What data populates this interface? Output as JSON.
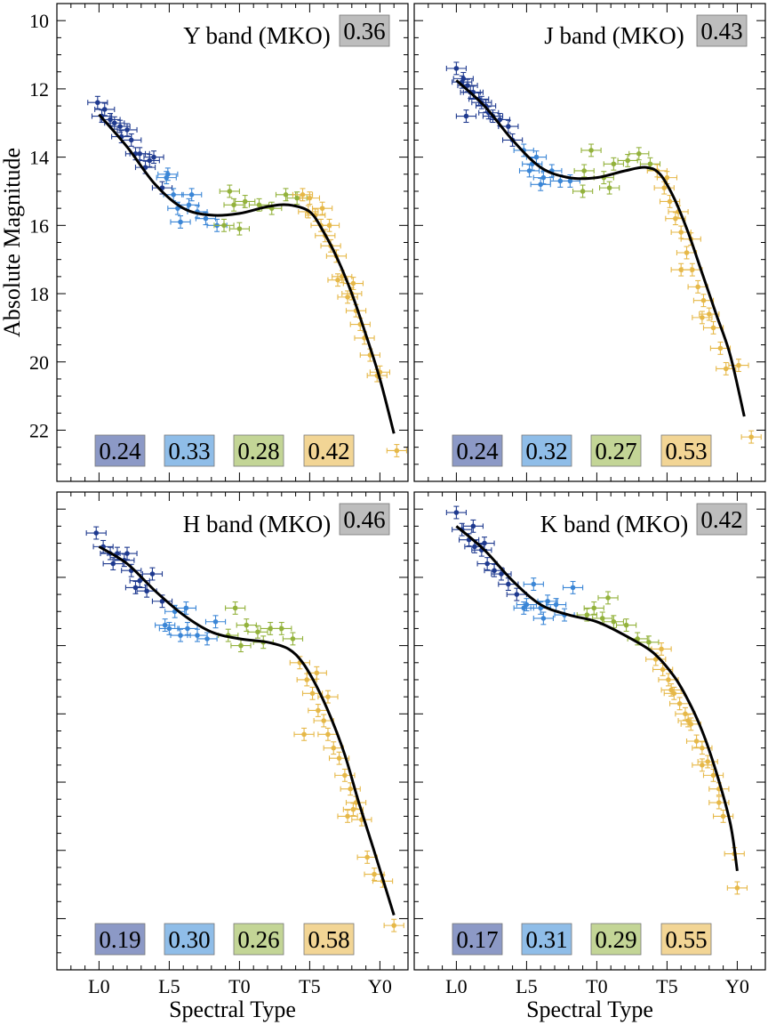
{
  "chart_data": [
    {
      "type": "scatter",
      "title": "Y band (MKO)",
      "xlabel": "",
      "ylabel": "Absolute Magnitude",
      "x_ticks": [
        "L0",
        "L5",
        "T0",
        "T5",
        "Y0"
      ],
      "x_tick_values": [
        0,
        5,
        10,
        15,
        20
      ],
      "xlim": [
        -3,
        22
      ],
      "ylim": [
        23.5,
        9.5
      ],
      "y_inverted": true,
      "y_ticks": [
        "10",
        "12",
        "14",
        "16",
        "18",
        "20",
        "22"
      ],
      "y_tick_values": [
        10,
        12,
        14,
        16,
        18,
        20,
        22
      ],
      "total_scatter": "0.36",
      "group_scatter": [
        "0.24",
        "0.33",
        "0.28",
        "0.42"
      ],
      "fit_curve": [
        [
          0,
          12.75
        ],
        [
          2,
          13.7
        ],
        [
          4,
          14.8
        ],
        [
          6,
          15.5
        ],
        [
          8,
          15.7
        ],
        [
          10,
          15.65
        ],
        [
          12,
          15.45
        ],
        [
          13.5,
          15.4
        ],
        [
          15,
          15.6
        ],
        [
          16,
          16.2
        ],
        [
          17,
          17.0
        ],
        [
          18,
          18.0
        ],
        [
          19,
          19.2
        ],
        [
          20,
          20.5
        ],
        [
          21,
          22.1
        ]
      ],
      "points": [
        [
          -0.1,
          12.4,
          0
        ],
        [
          0.4,
          12.6,
          0
        ],
        [
          0.8,
          12.9,
          0
        ],
        [
          1.1,
          13.0,
          0
        ],
        [
          1.5,
          13.1,
          0
        ],
        [
          2.0,
          13.2,
          0
        ],
        [
          2.3,
          13.5,
          0
        ],
        [
          2.9,
          13.9,
          0
        ],
        [
          3.3,
          14.3,
          0
        ],
        [
          3.9,
          14.0,
          0
        ],
        [
          0.2,
          12.8,
          0
        ],
        [
          1.6,
          13.4,
          0
        ],
        [
          2.6,
          13.9,
          0
        ],
        [
          3.6,
          14.1,
          0
        ],
        [
          4.5,
          14.9,
          0
        ],
        [
          4.8,
          14.6,
          1
        ],
        [
          5.3,
          15.1,
          1
        ],
        [
          5.6,
          15.5,
          1
        ],
        [
          6.4,
          15.4,
          1
        ],
        [
          7.0,
          15.6,
          1
        ],
        [
          7.6,
          15.8,
          1
        ],
        [
          8.4,
          16.0,
          1
        ],
        [
          5.8,
          15.9,
          1
        ],
        [
          6.6,
          15.1,
          1
        ],
        [
          4.9,
          14.5,
          1
        ],
        [
          8.9,
          16.0,
          2
        ],
        [
          9.6,
          15.4,
          2
        ],
        [
          10.4,
          15.3,
          2
        ],
        [
          11.4,
          15.4,
          2
        ],
        [
          12.3,
          15.5,
          2
        ],
        [
          13.3,
          15.1,
          2
        ],
        [
          14.1,
          15.2,
          2
        ],
        [
          9.3,
          15.0,
          2
        ],
        [
          10.0,
          16.1,
          2
        ],
        [
          14.5,
          15.1,
          3
        ],
        [
          15.0,
          15.2,
          3
        ],
        [
          15.4,
          15.7,
          3
        ],
        [
          15.8,
          16.0,
          3
        ],
        [
          16.1,
          16.3,
          3
        ],
        [
          16.5,
          16.6,
          3
        ],
        [
          16.9,
          16.9,
          3
        ],
        [
          17.3,
          17.5,
          3
        ],
        [
          17.7,
          18.1,
          3
        ],
        [
          18.1,
          17.7,
          3
        ],
        [
          18.3,
          18.5,
          3
        ],
        [
          18.6,
          18.9,
          3
        ],
        [
          18.9,
          19.3,
          3
        ],
        [
          19.3,
          19.8,
          3
        ],
        [
          19.8,
          20.4,
          3
        ],
        [
          20.0,
          20.3,
          3
        ],
        [
          21.2,
          22.6,
          3
        ],
        [
          16.4,
          16.0,
          3
        ],
        [
          17.0,
          17.6,
          3
        ],
        [
          18.0,
          18.0,
          3
        ],
        [
          15.9,
          15.5,
          3
        ],
        [
          14.9,
          15.6,
          3
        ]
      ]
    },
    {
      "type": "scatter",
      "title": "J band (MKO)",
      "xlabel": "",
      "ylabel": "",
      "x_ticks": [
        "L0",
        "L5",
        "T0",
        "T5",
        "Y0"
      ],
      "x_tick_values": [
        0,
        5,
        10,
        15,
        20
      ],
      "xlim": [
        -3,
        22
      ],
      "ylim": [
        23.5,
        9.5
      ],
      "y_inverted": true,
      "total_scatter": "0.43",
      "group_scatter": [
        "0.24",
        "0.32",
        "0.27",
        "0.53"
      ],
      "fit_curve": [
        [
          0,
          11.75
        ],
        [
          2,
          12.5
        ],
        [
          4,
          13.5
        ],
        [
          6,
          14.3
        ],
        [
          8,
          14.6
        ],
        [
          10,
          14.6
        ],
        [
          12,
          14.4
        ],
        [
          13.5,
          14.3
        ],
        [
          14.5,
          14.5
        ],
        [
          15.5,
          15.2
        ],
        [
          16.5,
          16.2
        ],
        [
          17.5,
          17.4
        ],
        [
          18.5,
          18.6
        ],
        [
          19.5,
          19.8
        ],
        [
          20.5,
          21.6
        ]
      ],
      "points": [
        [
          0.0,
          11.4,
          0
        ],
        [
          0.4,
          11.8,
          0
        ],
        [
          0.8,
          11.9,
          0
        ],
        [
          1.2,
          12.1,
          0
        ],
        [
          1.6,
          12.3,
          0
        ],
        [
          2.1,
          12.5,
          0
        ],
        [
          2.6,
          12.8,
          0
        ],
        [
          3.1,
          12.9,
          0
        ],
        [
          3.7,
          13.1,
          0
        ],
        [
          0.5,
          11.7,
          0
        ],
        [
          1.0,
          12.1,
          0
        ],
        [
          1.8,
          12.4,
          0
        ],
        [
          2.3,
          12.7,
          0
        ],
        [
          4.0,
          13.5,
          0
        ],
        [
          0.7,
          12.8,
          0
        ],
        [
          4.8,
          13.8,
          1
        ],
        [
          5.2,
          14.4,
          1
        ],
        [
          5.7,
          14.0,
          1
        ],
        [
          6.2,
          14.6,
          1
        ],
        [
          6.8,
          14.4,
          1
        ],
        [
          7.4,
          14.7,
          1
        ],
        [
          8.1,
          14.7,
          1
        ],
        [
          6.0,
          14.8,
          1
        ],
        [
          5.4,
          14.2,
          1
        ],
        [
          9.1,
          14.4,
          2
        ],
        [
          9.6,
          13.8,
          2
        ],
        [
          10.5,
          14.6,
          2
        ],
        [
          11.2,
          14.2,
          2
        ],
        [
          12.2,
          14.1,
          2
        ],
        [
          13.0,
          13.9,
          2
        ],
        [
          13.8,
          14.2,
          2
        ],
        [
          9.0,
          15.0,
          2
        ],
        [
          10.9,
          14.9,
          2
        ],
        [
          14.3,
          14.4,
          3
        ],
        [
          14.8,
          14.9,
          3
        ],
        [
          15.2,
          15.3,
          3
        ],
        [
          15.6,
          15.8,
          3
        ],
        [
          16.0,
          16.2,
          3
        ],
        [
          16.4,
          16.8,
          3
        ],
        [
          16.8,
          17.3,
          3
        ],
        [
          17.2,
          17.8,
          3
        ],
        [
          17.6,
          18.2,
          3
        ],
        [
          18.0,
          18.6,
          3
        ],
        [
          18.3,
          19.0,
          3
        ],
        [
          18.8,
          19.6,
          3
        ],
        [
          19.2,
          20.2,
          3
        ],
        [
          20.1,
          20.1,
          3
        ],
        [
          21.0,
          22.2,
          3
        ],
        [
          15.8,
          15.6,
          3
        ],
        [
          16.7,
          16.4,
          3
        ],
        [
          17.5,
          18.7,
          3
        ],
        [
          16.0,
          17.3,
          3
        ],
        [
          15.0,
          14.6,
          3
        ]
      ]
    },
    {
      "type": "scatter",
      "title": "H band (MKO)",
      "xlabel": "Spectral Type",
      "ylabel": "Absolute Magnitude",
      "x_ticks": [
        "L0",
        "L5",
        "T0",
        "T5",
        "Y0"
      ],
      "x_tick_values": [
        0,
        5,
        10,
        15,
        20
      ],
      "xlim": [
        -3,
        22
      ],
      "ylim": [
        23.5,
        9.5
      ],
      "y_inverted": true,
      "total_scatter": "0.46",
      "group_scatter": [
        "0.19",
        "0.30",
        "0.26",
        "0.58"
      ],
      "fit_curve": [
        [
          0,
          11.1
        ],
        [
          2,
          11.6
        ],
        [
          4,
          12.4
        ],
        [
          6,
          13.1
        ],
        [
          8,
          13.6
        ],
        [
          10,
          13.8
        ],
        [
          12,
          13.9
        ],
        [
          13.5,
          14.1
        ],
        [
          14.5,
          14.5
        ],
        [
          15.5,
          15.2
        ],
        [
          16.5,
          16.1
        ],
        [
          17.5,
          17.2
        ],
        [
          18.5,
          18.6
        ],
        [
          19.5,
          19.9
        ],
        [
          21.0,
          21.9
        ]
      ],
      "points": [
        [
          -0.2,
          10.7,
          0
        ],
        [
          0.3,
          11.1,
          0
        ],
        [
          0.8,
          11.3,
          0
        ],
        [
          1.3,
          11.3,
          0
        ],
        [
          1.8,
          11.5,
          0
        ],
        [
          2.3,
          11.8,
          0
        ],
        [
          2.9,
          12.1,
          0
        ],
        [
          3.4,
          12.4,
          0
        ],
        [
          3.8,
          11.9,
          0
        ],
        [
          1.0,
          11.6,
          0
        ],
        [
          2.0,
          11.3,
          0
        ],
        [
          2.6,
          12.3,
          0
        ],
        [
          4.5,
          12.7,
          0
        ],
        [
          5.0,
          13.5,
          1
        ],
        [
          5.4,
          13.0,
          1
        ],
        [
          5.8,
          13.7,
          1
        ],
        [
          6.3,
          13.5,
          1
        ],
        [
          7.0,
          13.7,
          1
        ],
        [
          7.7,
          13.8,
          1
        ],
        [
          8.3,
          13.3,
          1
        ],
        [
          6.2,
          12.9,
          1
        ],
        [
          4.7,
          13.4,
          1
        ],
        [
          9.2,
          13.7,
          2
        ],
        [
          9.7,
          12.9,
          2
        ],
        [
          10.5,
          13.4,
          2
        ],
        [
          11.3,
          13.6,
          2
        ],
        [
          12.2,
          13.5,
          2
        ],
        [
          13.0,
          13.5,
          2
        ],
        [
          13.8,
          13.8,
          2
        ],
        [
          10.1,
          14.0,
          2
        ],
        [
          11.7,
          13.9,
          2
        ],
        [
          14.3,
          14.5,
          3
        ],
        [
          14.8,
          15.0,
          3
        ],
        [
          15.2,
          15.4,
          3
        ],
        [
          15.6,
          15.9,
          3
        ],
        [
          16.0,
          16.2,
          3
        ],
        [
          16.3,
          16.6,
          3
        ],
        [
          16.7,
          17.0,
          3
        ],
        [
          17.1,
          17.3,
          3
        ],
        [
          17.5,
          17.8,
          3
        ],
        [
          17.9,
          18.2,
          3
        ],
        [
          18.3,
          18.6,
          3
        ],
        [
          18.7,
          19.1,
          3
        ],
        [
          19.1,
          20.2,
          3
        ],
        [
          19.6,
          20.7,
          3
        ],
        [
          20.2,
          20.9,
          3
        ],
        [
          21.0,
          22.2,
          3
        ],
        [
          14.6,
          16.6,
          3
        ],
        [
          16.3,
          15.5,
          3
        ],
        [
          17.7,
          19.0,
          3
        ],
        [
          18.1,
          18.8,
          3
        ],
        [
          15.5,
          14.8,
          3
        ]
      ]
    },
    {
      "type": "scatter",
      "title": "K band (MKO)",
      "xlabel": "Spectral Type",
      "ylabel": "",
      "x_ticks": [
        "L0",
        "L5",
        "T0",
        "T5",
        "Y0"
      ],
      "x_tick_values": [
        0,
        5,
        10,
        15,
        20
      ],
      "xlim": [
        -3,
        22
      ],
      "ylim": [
        23.5,
        9.5
      ],
      "y_inverted": true,
      "total_scatter": "0.42",
      "group_scatter": [
        "0.17",
        "0.31",
        "0.29",
        "0.55"
      ],
      "fit_curve": [
        [
          0,
          10.5
        ],
        [
          2,
          11.2
        ],
        [
          4,
          12.1
        ],
        [
          6,
          12.8
        ],
        [
          8,
          13.1
        ],
        [
          10,
          13.3
        ],
        [
          12,
          13.7
        ],
        [
          14,
          14.2
        ],
        [
          15.5,
          14.9
        ],
        [
          16.5,
          15.6
        ],
        [
          17.5,
          16.5
        ],
        [
          18.5,
          17.7
        ],
        [
          19.5,
          19.2
        ],
        [
          20.0,
          20.6
        ]
      ],
      "points": [
        [
          0.0,
          10.1,
          0
        ],
        [
          0.4,
          10.6,
          0
        ],
        [
          0.9,
          10.9,
          0
        ],
        [
          1.3,
          11.1,
          0
        ],
        [
          1.8,
          11.2,
          0
        ],
        [
          2.2,
          11.6,
          0
        ],
        [
          2.7,
          11.8,
          0
        ],
        [
          3.2,
          11.9,
          0
        ],
        [
          3.7,
          12.2,
          0
        ],
        [
          1.2,
          10.5,
          0
        ],
        [
          2.0,
          11.0,
          0
        ],
        [
          4.3,
          12.5,
          0
        ],
        [
          5.0,
          12.8,
          1
        ],
        [
          5.5,
          12.2,
          1
        ],
        [
          6.0,
          12.9,
          1
        ],
        [
          6.5,
          12.7,
          1
        ],
        [
          7.1,
          12.8,
          1
        ],
        [
          7.7,
          13.1,
          1
        ],
        [
          8.3,
          12.3,
          1
        ],
        [
          4.8,
          12.9,
          1
        ],
        [
          6.2,
          13.2,
          1
        ],
        [
          9.3,
          13.1,
          2
        ],
        [
          9.8,
          12.9,
          2
        ],
        [
          10.4,
          13.2,
          2
        ],
        [
          11.2,
          13.3,
          2
        ],
        [
          12.1,
          13.4,
          2
        ],
        [
          12.9,
          13.8,
          2
        ],
        [
          13.7,
          13.9,
          2
        ],
        [
          10.8,
          12.6,
          2
        ],
        [
          14.2,
          14.4,
          3
        ],
        [
          14.7,
          14.7,
          3
        ],
        [
          15.1,
          15.0,
          3
        ],
        [
          15.5,
          15.4,
          3
        ],
        [
          15.9,
          15.7,
          3
        ],
        [
          16.3,
          16.0,
          3
        ],
        [
          16.7,
          16.3,
          3
        ],
        [
          17.1,
          16.8,
          3
        ],
        [
          17.5,
          17.0,
          3
        ],
        [
          17.9,
          17.4,
          3
        ],
        [
          18.3,
          17.8,
          3
        ],
        [
          18.7,
          18.2,
          3
        ],
        [
          19.0,
          19.0,
          3
        ],
        [
          19.8,
          20.1,
          3
        ],
        [
          20.0,
          21.1,
          3
        ],
        [
          15.3,
          15.3,
          3
        ],
        [
          16.5,
          16.2,
          3
        ],
        [
          17.5,
          17.5,
          3
        ],
        [
          14.6,
          14.1,
          3
        ],
        [
          18.7,
          18.6,
          3
        ]
      ]
    }
  ],
  "colors": {
    "group_points": [
      "#1f3a8f",
      "#3b86d6",
      "#93b23c",
      "#e6b848"
    ],
    "group_boxes": [
      "#8c99c6",
      "#8fbde8",
      "#c3d596",
      "#f2d595"
    ],
    "total_box": "#bdbdbd",
    "fit_line": "#000000"
  }
}
